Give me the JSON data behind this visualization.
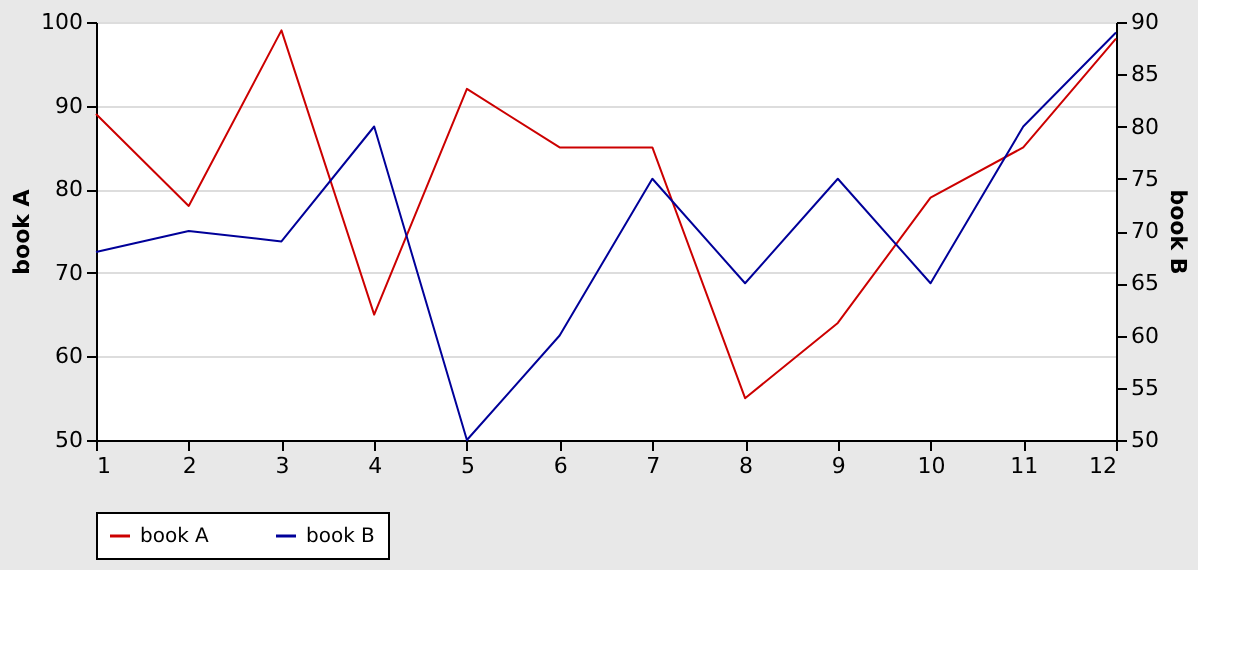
{
  "chart_data": {
    "type": "line",
    "x": [
      1,
      2,
      3,
      4,
      5,
      6,
      7,
      8,
      9,
      10,
      11,
      12
    ],
    "xlim": [
      1,
      12
    ],
    "xticks": [
      1,
      2,
      3,
      4,
      5,
      6,
      7,
      8,
      9,
      10,
      11,
      12
    ],
    "ylabel": "book A",
    "y2label": "book B",
    "ylim": [
      50,
      100
    ],
    "yticks": [
      50,
      60,
      70,
      80,
      90,
      100
    ],
    "y2lim": [
      50,
      90
    ],
    "y2ticks": [
      50,
      55,
      60,
      65,
      70,
      75,
      80,
      85,
      90
    ],
    "series": [
      {
        "name": "book A",
        "color": "#cc0000",
        "values": [
          89,
          78,
          99,
          65,
          92,
          85,
          85,
          55,
          64,
          79,
          85,
          98
        ]
      },
      {
        "name": "book B",
        "color": "#000099",
        "axis": "y2",
        "values": [
          68,
          70,
          69,
          80,
          50,
          60,
          75,
          65,
          75,
          65,
          80,
          89
        ]
      }
    ],
    "grid": "y",
    "legend": "bottom",
    "line_style": "solid",
    "marker": "none"
  }
}
